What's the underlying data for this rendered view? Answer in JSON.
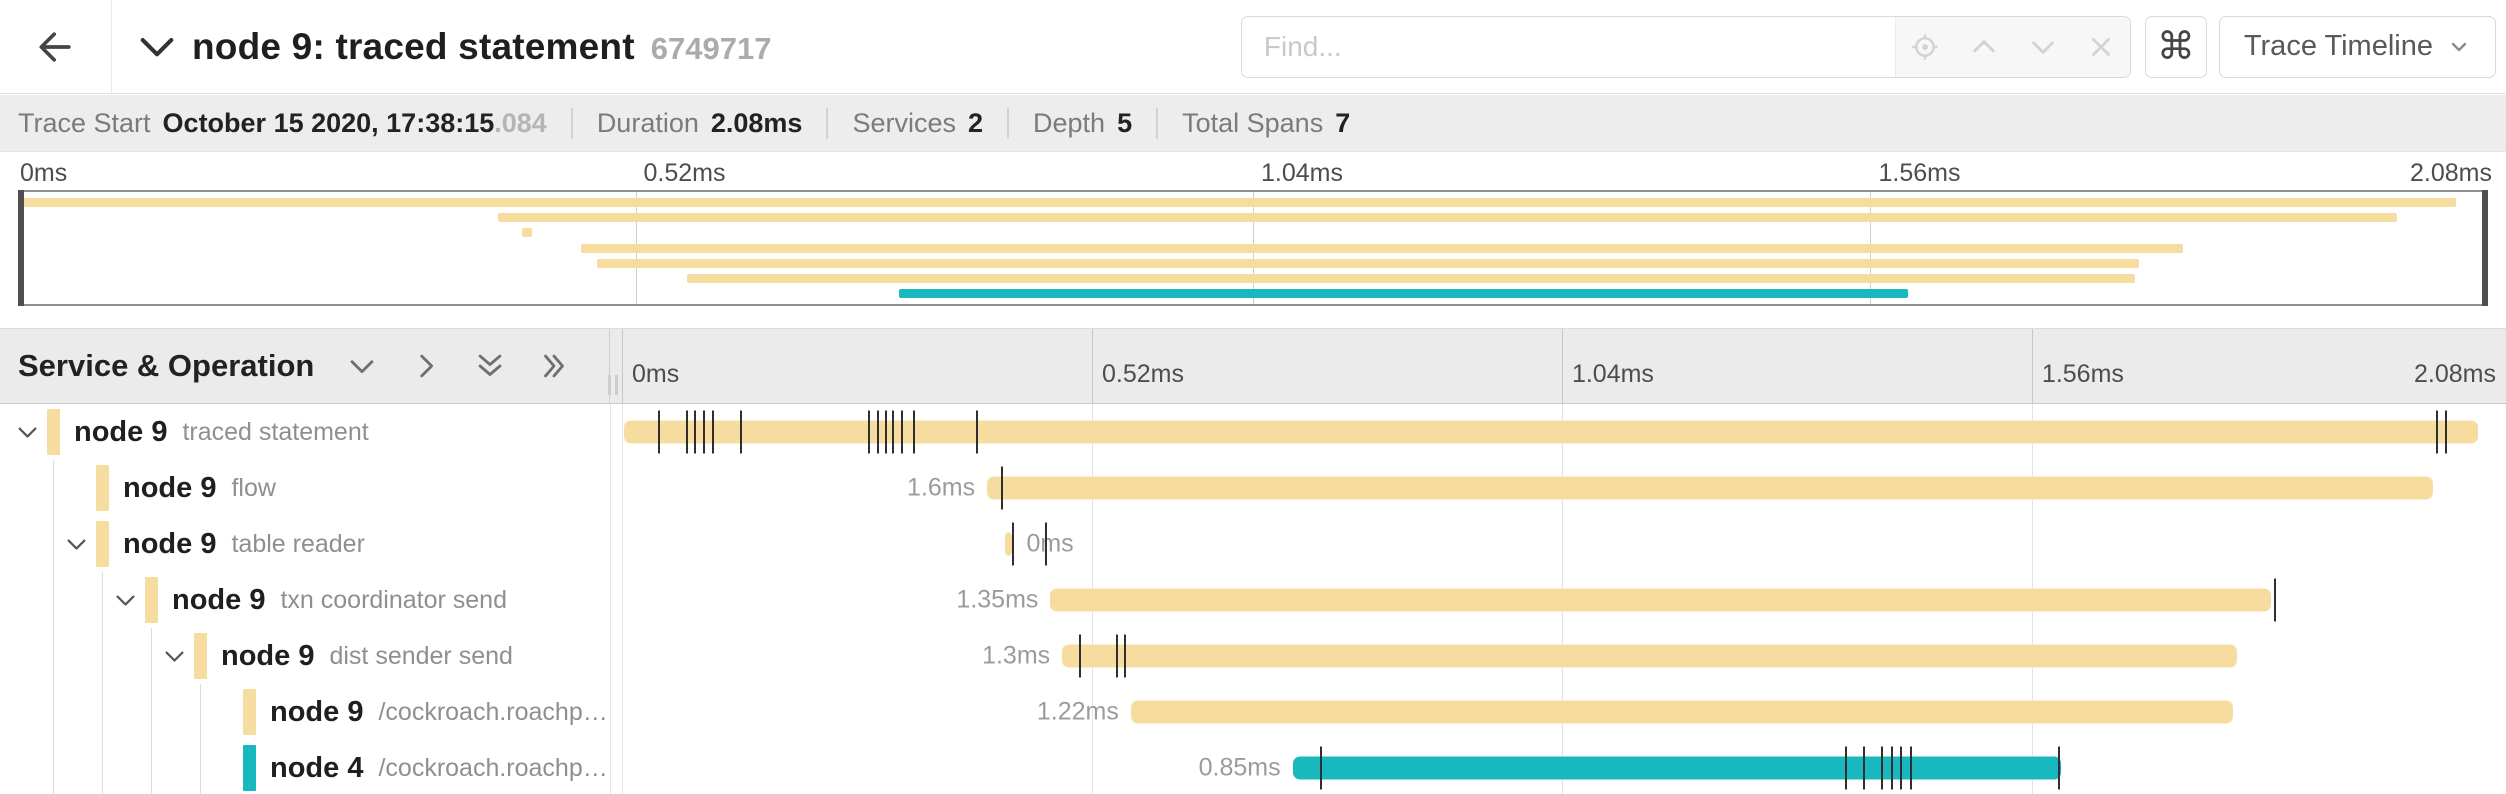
{
  "header": {
    "title": "node 9: traced statement",
    "trace_id": "6749717",
    "find_placeholder": "Find...",
    "shortcut_key": "⌘",
    "view_selector": "Trace Timeline"
  },
  "info_bar": {
    "trace_start_label": "Trace Start",
    "trace_start_value": "October 15 2020, 17:38:15",
    "trace_start_fraction": ".084",
    "duration_label": "Duration",
    "duration_value": "2.08ms",
    "services_label": "Services",
    "services_value": "2",
    "depth_label": "Depth",
    "depth_value": "5",
    "total_spans_label": "Total Spans",
    "total_spans_value": "7"
  },
  "colors": {
    "tan": "#F6DC9E",
    "teal": "#17B8BE"
  },
  "timeline": {
    "left_header": "Service & Operation",
    "total_ms": 2.08,
    "tick_labels": [
      "0ms",
      "0.52ms",
      "1.04ms",
      "1.56ms",
      "2.08ms"
    ],
    "tick_values_ms": [
      0,
      0.52,
      1.04,
      1.56,
      2.08
    ],
    "spans": [
      {
        "service": "node 9",
        "operation": "traced statement",
        "depth": 0,
        "has_children": true,
        "color": "tan",
        "start_ms": 0.002,
        "duration_ms": 2.052,
        "duration_label": "",
        "label_side": "left",
        "ticks_ms": [
          0.041,
          0.072,
          0.081,
          0.091,
          0.101,
          0.132,
          0.273,
          0.283,
          0.292,
          0.3,
          0.31,
          0.323,
          0.393,
          2.008,
          2.018
        ]
      },
      {
        "service": "node 9",
        "operation": "flow",
        "depth": 1,
        "has_children": false,
        "color": "tan",
        "start_ms": 0.404,
        "duration_ms": 1.6,
        "duration_label": "1.6ms",
        "label_side": "left",
        "ticks_ms": [
          0.42
        ]
      },
      {
        "service": "node 9",
        "operation": "table reader",
        "depth": 1,
        "has_children": true,
        "color": "tan",
        "start_ms": 0.424,
        "duration_ms": 0.008,
        "duration_label": "0ms",
        "label_side": "right",
        "ticks_ms": [
          0.433,
          0.469
        ]
      },
      {
        "service": "node 9",
        "operation": "txn coordinator send",
        "depth": 2,
        "has_children": true,
        "color": "tan",
        "start_ms": 0.474,
        "duration_ms": 1.35,
        "duration_label": "1.35ms",
        "label_side": "left",
        "ticks_ms": [
          1.829
        ]
      },
      {
        "service": "node 9",
        "operation": "dist sender send",
        "depth": 3,
        "has_children": true,
        "color": "tan",
        "start_ms": 0.487,
        "duration_ms": 1.3,
        "duration_label": "1.3ms",
        "label_side": "left",
        "ticks_ms": [
          0.507,
          0.548,
          0.557
        ]
      },
      {
        "service": "node 9",
        "operation": "/cockroach.roachpb.I…",
        "depth": 4,
        "has_children": false,
        "color": "tan",
        "start_ms": 0.563,
        "duration_ms": 1.22,
        "duration_label": "1.22ms",
        "label_side": "left",
        "ticks_ms": []
      },
      {
        "service": "node 4",
        "operation": "/cockroach.roachpb.I…",
        "depth": 4,
        "has_children": false,
        "color": "teal",
        "start_ms": 0.742,
        "duration_ms": 0.85,
        "duration_label": "0.85ms",
        "label_side": "left",
        "ticks_ms": [
          0.773,
          1.354,
          1.374,
          1.394,
          1.405,
          1.415,
          1.426,
          1.59
        ]
      }
    ]
  }
}
